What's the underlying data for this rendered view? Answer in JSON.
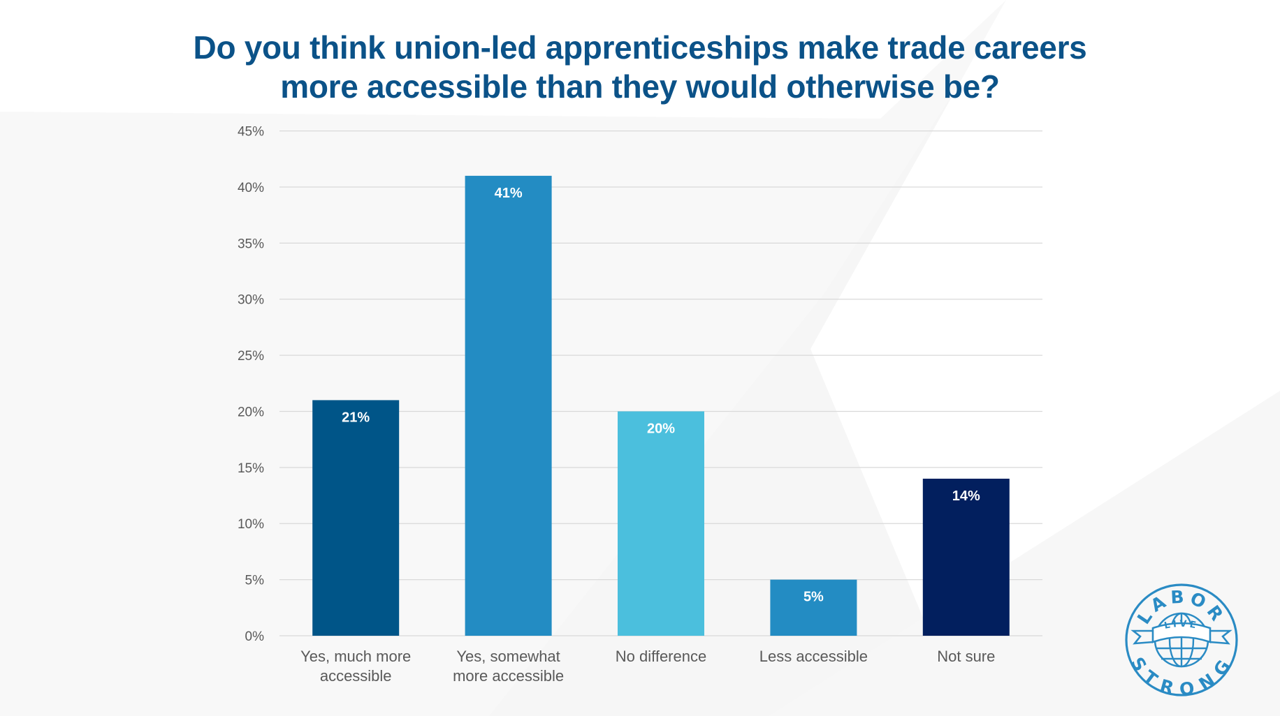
{
  "title_lines": [
    "Do you think union-led apprenticeships make trade careers",
    "more accessible than they would otherwise be?"
  ],
  "logo": {
    "top_text": "LABOR",
    "banner_text": "LIVE",
    "bottom_text": "STRONG",
    "color": "#2a8bc4"
  },
  "chart_data": {
    "type": "bar",
    "title": "Do you think union-led apprenticeships make trade careers more accessible than they would otherwise be?",
    "xlabel": "",
    "ylabel": "",
    "ylim": [
      0,
      45
    ],
    "y_ticks": [
      0,
      5,
      10,
      15,
      20,
      25,
      30,
      35,
      40,
      45
    ],
    "y_tick_labels": [
      "0%",
      "5%",
      "10%",
      "15%",
      "20%",
      "25%",
      "30%",
      "35%",
      "40%",
      "45%"
    ],
    "grid": true,
    "categories": [
      [
        "Yes, much more",
        "accessible"
      ],
      [
        "Yes, somewhat",
        "more accessible"
      ],
      [
        "No difference"
      ],
      [
        "Less accessible"
      ],
      [
        "Not sure"
      ]
    ],
    "values": [
      21,
      41,
      20,
      5,
      14
    ],
    "data_labels": [
      "21%",
      "41%",
      "20%",
      "5%",
      "14%"
    ],
    "colors": [
      "#005588",
      "#238cc3",
      "#4bbfdd",
      "#238cc3",
      "#021f5e"
    ]
  }
}
